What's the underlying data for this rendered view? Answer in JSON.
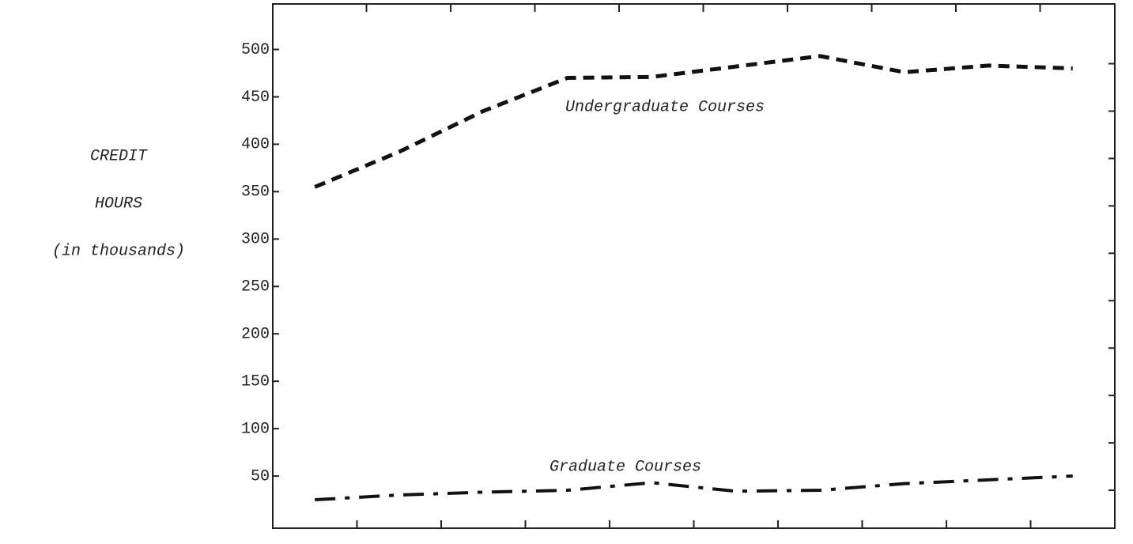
{
  "chart_data": {
    "type": "line",
    "ylabel": [
      "CREDIT",
      "HOURS",
      "(in thousands)"
    ],
    "categories": [
      null,
      null,
      null,
      null,
      null,
      null,
      null,
      null,
      null,
      null
    ],
    "series": [
      {
        "name": "Undergraduate Courses",
        "color": "#111111",
        "values": [
          355,
          392,
          435,
          470,
          471,
          482,
          493,
          476,
          483,
          480
        ]
      },
      {
        "name": "Graduate Courses",
        "color": "#111111",
        "values": [
          25,
          30,
          33,
          35,
          43,
          34,
          35,
          42,
          46,
          50
        ]
      }
    ],
    "ylim": [
      -5,
      548
    ],
    "yticks": [
      50,
      100,
      150,
      200,
      250,
      300,
      350,
      400,
      450,
      500
    ],
    "grid": false
  }
}
